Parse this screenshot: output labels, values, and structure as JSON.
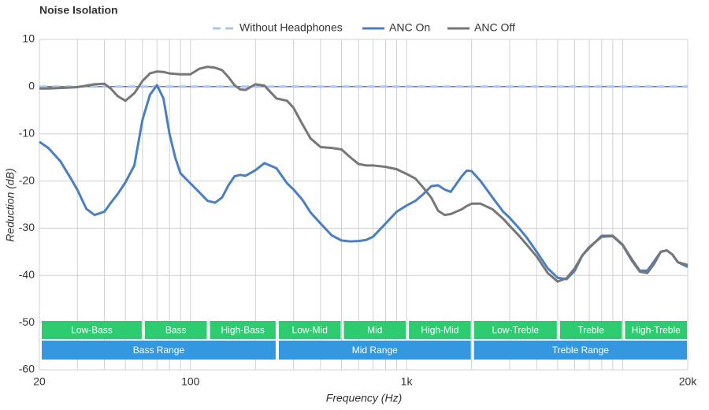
{
  "chart_data": {
    "type": "line",
    "title": "Noise Isolation",
    "x_label": "Frequency (Hz)",
    "y_label": "Reduction (dB)",
    "xscale": "log",
    "xlim": [
      20,
      20000
    ],
    "ylim": [
      -60,
      10
    ],
    "xticks": [
      20,
      100,
      {
        "value": 1000,
        "label": "1k"
      },
      {
        "value": 20000,
        "label": "20k"
      }
    ],
    "xminorticks": [
      30,
      40,
      50,
      60,
      70,
      80,
      90,
      200,
      300,
      400,
      500,
      600,
      700,
      800,
      900,
      2000,
      3000,
      4000,
      5000,
      6000,
      7000,
      8000,
      9000,
      10000
    ],
    "yticks": [
      10,
      0,
      -10,
      -20,
      -30,
      -40,
      -50,
      -60
    ],
    "grid": true,
    "x": [
      20,
      22,
      25,
      28,
      30,
      33,
      36,
      40,
      43,
      46,
      50,
      55,
      60,
      65,
      70,
      75,
      80,
      85,
      90,
      100,
      110,
      120,
      130,
      140,
      150,
      160,
      170,
      180,
      200,
      220,
      250,
      280,
      300,
      330,
      360,
      400,
      450,
      500,
      550,
      600,
      650,
      700,
      800,
      900,
      1000,
      1100,
      1200,
      1300,
      1400,
      1500,
      1600,
      1800,
      1900,
      2000,
      2200,
      2500,
      2800,
      3000,
      3300,
      3600,
      4000,
      4500,
      5000,
      5500,
      6000,
      6500,
      7000,
      8000,
      9000,
      10000,
      11000,
      12000,
      13000,
      14000,
      15000,
      16000,
      17000,
      18000,
      20000
    ],
    "series": [
      {
        "name": "Without Headphones",
        "color": "#a9c4f5",
        "dashed": true,
        "x": [
          20,
          20000
        ],
        "values": [
          0,
          0
        ]
      },
      {
        "name": "ANC On",
        "color": "#4a7fc1",
        "values": [
          -11.7,
          -13.0,
          -15.8,
          -19.5,
          -21.9,
          -25.9,
          -27.2,
          -26.5,
          -24.5,
          -22.8,
          -20.3,
          -16.7,
          -7,
          -1.7,
          0.3,
          -2.5,
          -10,
          -15,
          -18.4,
          -20.5,
          -22.4,
          -24.2,
          -24.6,
          -23.5,
          -20.9,
          -19.0,
          -18.7,
          -18.9,
          -17.7,
          -16.2,
          -17.3,
          -20.5,
          -21.8,
          -24.0,
          -26.7,
          -29.0,
          -31.5,
          -32.6,
          -32.8,
          -32.7,
          -32.5,
          -31.8,
          -29.0,
          -26.5,
          -25.2,
          -24.2,
          -22.7,
          -21.1,
          -20.9,
          -21.8,
          -22.3,
          -19.0,
          -17.8,
          -17.9,
          -20.0,
          -23.5,
          -26.5,
          -27.8,
          -29.9,
          -32.0,
          -35.0,
          -38.5,
          -40.5,
          -40.8,
          -39.0,
          -35.8,
          -34.2,
          -31.6,
          -31.6,
          -33.5,
          -36.5,
          -39.0,
          -39.0,
          -37,
          -35,
          -34.7,
          -35.6,
          -37.2,
          -38.2
        ]
      },
      {
        "name": "ANC Off",
        "color": "#777777",
        "values": [
          -0.4,
          -0.4,
          -0.3,
          -0.2,
          -0.1,
          0.2,
          0.5,
          0.6,
          -0.5,
          -2,
          -3.0,
          -1.4,
          1.2,
          2.8,
          3.2,
          3.1,
          2.8,
          2.7,
          2.6,
          2.6,
          3.8,
          4.2,
          4.0,
          3.5,
          2.0,
          0.3,
          -0.6,
          -0.7,
          0.5,
          0.2,
          -2.5,
          -3.0,
          -4.5,
          -8.0,
          -11.0,
          -12.8,
          -13.0,
          -13.3,
          -15.0,
          -16.4,
          -16.7,
          -16.7,
          -17.0,
          -17.5,
          -18.5,
          -19.5,
          -21.5,
          -23.5,
          -26.3,
          -27.2,
          -27.0,
          -26.0,
          -25.3,
          -24.8,
          -24.8,
          -26.0,
          -28.0,
          -29.5,
          -31.5,
          -33.5,
          -36.0,
          -39.5,
          -41.3,
          -40.6,
          -38.5,
          -35.8,
          -34.0,
          -31.8,
          -31.7,
          -33.6,
          -36.8,
          -39.2,
          -39.5,
          -37.5,
          -35,
          -34.7,
          -35.6,
          -37.2,
          -37.8
        ]
      }
    ],
    "sub_ranges": {
      "color": "#2ecc71",
      "items": [
        {
          "label": "Low-Bass",
          "from": 20,
          "to": 60
        },
        {
          "label": "Bass",
          "from": 60,
          "to": 120
        },
        {
          "label": "High-Bass",
          "from": 120,
          "to": 250
        },
        {
          "label": "Low-Mid",
          "from": 250,
          "to": 500
        },
        {
          "label": "Mid",
          "from": 500,
          "to": 1000
        },
        {
          "label": "High-Mid",
          "from": 1000,
          "to": 2000
        },
        {
          "label": "Low-Treble",
          "from": 2000,
          "to": 5000
        },
        {
          "label": "Treble",
          "from": 5000,
          "to": 10000
        },
        {
          "label": "High-Treble",
          "from": 10000,
          "to": 20000
        }
      ]
    },
    "ranges": {
      "color": "#3498e0",
      "items": [
        {
          "label": "Bass Range",
          "from": 20,
          "to": 250
        },
        {
          "label": "Mid Range",
          "from": 250,
          "to": 2000
        },
        {
          "label": "Treble Range",
          "from": 2000,
          "to": 20000
        }
      ]
    }
  }
}
